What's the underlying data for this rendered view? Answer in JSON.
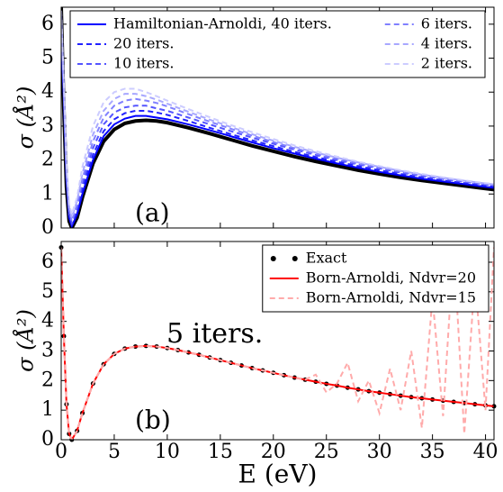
{
  "chart_data": [
    {
      "type": "line",
      "ylabel": "σ (Å²)",
      "annotations": [
        "(a)"
      ],
      "x": [
        0,
        0.25,
        0.5,
        0.75,
        1,
        1.5,
        2,
        3,
        4,
        5,
        6,
        7,
        8,
        9,
        10,
        12,
        14,
        16,
        18,
        20,
        22,
        24,
        26,
        28,
        30,
        32,
        34,
        36,
        38,
        40,
        40.8
      ],
      "series": [
        {
          "color": "#000000",
          "linestyle": "solid",
          "linewidth": 4,
          "values": [
            6.5,
            3.5,
            1.2,
            0.2,
            0.0,
            0.3,
            0.9,
            1.9,
            2.55,
            2.9,
            3.08,
            3.15,
            3.17,
            3.15,
            3.1,
            2.95,
            2.78,
            2.6,
            2.42,
            2.26,
            2.1,
            1.96,
            1.83,
            1.7,
            1.59,
            1.49,
            1.4,
            1.32,
            1.24,
            1.16,
            1.13
          ]
        },
        {
          "name": "Hamiltonian-Arnoldi, 40 iters.",
          "color": "#0000ff",
          "linestyle": "solid",
          "linewidth": 2,
          "values": [
            5.7,
            3.8,
            1.4,
            0.3,
            0.05,
            0.4,
            1.0,
            2.0,
            2.7,
            3.05,
            3.22,
            3.3,
            3.3,
            3.25,
            3.2,
            3.05,
            2.88,
            2.7,
            2.52,
            2.35,
            2.19,
            2.04,
            1.9,
            1.77,
            1.65,
            1.55,
            1.45,
            1.37,
            1.29,
            1.21,
            1.18
          ]
        },
        {
          "name": "20 iters.",
          "color": "#2222ff",
          "linestyle": "dashed",
          "linewidth": 2,
          "values": [
            6.0,
            3.9,
            1.5,
            0.35,
            0.1,
            0.5,
            1.15,
            2.15,
            2.85,
            3.2,
            3.38,
            3.45,
            3.45,
            3.4,
            3.33,
            3.15,
            2.95,
            2.76,
            2.58,
            2.41,
            2.24,
            2.09,
            1.95,
            1.82,
            1.7,
            1.59,
            1.49,
            1.4,
            1.32,
            1.25,
            1.22
          ]
        },
        {
          "name": "10 iters.",
          "color": "#5555ff",
          "linestyle": "dashed",
          "linewidth": 2,
          "values": [
            6.1,
            4.0,
            1.6,
            0.4,
            0.15,
            0.6,
            1.3,
            2.35,
            3.05,
            3.4,
            3.55,
            3.6,
            3.6,
            3.52,
            3.45,
            3.25,
            3.05,
            2.85,
            2.66,
            2.48,
            2.31,
            2.15,
            2.0,
            1.87,
            1.75,
            1.63,
            1.53,
            1.44,
            1.36,
            1.28,
            1.25
          ]
        },
        {
          "name": "6 iters.",
          "color": "#8080ff",
          "linestyle": "dashed",
          "linewidth": 2,
          "values": [
            6.2,
            4.1,
            1.7,
            0.5,
            0.2,
            0.7,
            1.45,
            2.55,
            3.25,
            3.6,
            3.75,
            3.8,
            3.75,
            3.68,
            3.58,
            3.35,
            3.13,
            2.92,
            2.72,
            2.53,
            2.35,
            2.19,
            2.04,
            1.9,
            1.78,
            1.66,
            1.56,
            1.46,
            1.38,
            1.3,
            1.27
          ]
        },
        {
          "name": "4 iters.",
          "color": "#a8a8ff",
          "linestyle": "dashed",
          "linewidth": 2,
          "values": [
            6.3,
            4.2,
            1.8,
            0.6,
            0.3,
            0.8,
            1.6,
            2.75,
            3.45,
            3.8,
            3.95,
            3.95,
            3.88,
            3.78,
            3.66,
            3.42,
            3.19,
            2.97,
            2.76,
            2.57,
            2.39,
            2.22,
            2.07,
            1.93,
            1.8,
            1.68,
            1.57,
            1.48,
            1.39,
            1.31,
            1.28
          ]
        },
        {
          "name": "2 iters.",
          "color": "#ccccff",
          "linestyle": "dashed",
          "linewidth": 2,
          "values": [
            6.4,
            4.3,
            1.9,
            0.7,
            0.4,
            0.9,
            1.8,
            3.0,
            3.7,
            4.0,
            4.1,
            4.1,
            4.0,
            3.88,
            3.75,
            3.5,
            3.26,
            3.03,
            2.82,
            2.62,
            2.43,
            2.26,
            2.1,
            1.95,
            1.82,
            1.7,
            1.59,
            1.49,
            1.4,
            1.32,
            1.29
          ]
        }
      ],
      "xlim": [
        0,
        40.8
      ],
      "ylim": [
        0,
        6.5
      ],
      "xticks": [
        0,
        5,
        10,
        15,
        20,
        25,
        30,
        35,
        40
      ],
      "yticks": [
        0,
        1,
        2,
        3,
        4,
        5,
        6
      ],
      "show_xtick_labels": false,
      "legend": "upper center",
      "legend_columns": 2
    },
    {
      "type": "line",
      "xlabel": "E (eV)",
      "ylabel": "σ (Å²)",
      "annotations": [
        "5 iters.",
        "(b)"
      ],
      "x": [
        0,
        0.25,
        0.5,
        0.75,
        1,
        1.5,
        2,
        3,
        4,
        5,
        6,
        7,
        8,
        9,
        10,
        11,
        12,
        13,
        14,
        15,
        16,
        17,
        18,
        19,
        20,
        21,
        22,
        23,
        24,
        25,
        26,
        27,
        28,
        29,
        30,
        31,
        32,
        33,
        34,
        35,
        36,
        37,
        38,
        39,
        40,
        40.8
      ],
      "series": [
        {
          "name": "Exact",
          "color": "#000000",
          "linestyle": "none",
          "marker": "o",
          "linewidth": 0,
          "values": [
            6.5,
            3.5,
            1.2,
            0.2,
            0.0,
            0.3,
            0.9,
            1.9,
            2.55,
            2.9,
            3.08,
            3.15,
            3.17,
            3.15,
            3.1,
            3.03,
            2.95,
            2.87,
            2.78,
            2.69,
            2.6,
            2.51,
            2.42,
            2.34,
            2.26,
            2.18,
            2.1,
            2.03,
            1.96,
            1.89,
            1.83,
            1.76,
            1.7,
            1.64,
            1.59,
            1.54,
            1.49,
            1.44,
            1.4,
            1.36,
            1.32,
            1.28,
            1.24,
            1.2,
            1.16,
            1.13
          ]
        },
        {
          "name": "Born-Arnoldi, Ndvr=20",
          "color": "#ff0000",
          "linestyle": "solid",
          "linewidth": 2,
          "values": [
            6.5,
            3.5,
            1.2,
            0.2,
            0.0,
            0.3,
            0.9,
            1.9,
            2.55,
            2.9,
            3.08,
            3.15,
            3.17,
            3.15,
            3.1,
            3.03,
            2.95,
            2.87,
            2.78,
            2.69,
            2.6,
            2.51,
            2.42,
            2.34,
            2.26,
            2.18,
            2.1,
            2.03,
            1.96,
            1.89,
            1.83,
            1.76,
            1.7,
            1.64,
            1.59,
            1.54,
            1.49,
            1.44,
            1.4,
            1.36,
            1.32,
            1.28,
            1.24,
            1.2,
            1.16,
            1.13
          ]
        },
        {
          "name": "Born-Arnoldi, Ndvr=15",
          "color": "#ffaaaa",
          "linestyle": "dashed",
          "linewidth": 2,
          "values": [
            6.5,
            3.5,
            1.2,
            0.2,
            0.0,
            0.3,
            0.9,
            1.9,
            2.55,
            2.9,
            3.08,
            3.15,
            3.17,
            3.15,
            3.1,
            3.03,
            2.95,
            2.87,
            2.78,
            2.69,
            2.6,
            2.51,
            2.42,
            2.34,
            2.26,
            2.18,
            2.1,
            2.03,
            2.2,
            1.6,
            1.9,
            2.6,
            1.3,
            2.0,
            0.9,
            2.4,
            1.0,
            3.0,
            0.4,
            4.8,
            0.8,
            6.5,
            0.2,
            5.5,
            1.0,
            6.5
          ]
        }
      ],
      "xlim": [
        0,
        40.8
      ],
      "ylim": [
        0,
        6.7
      ],
      "xticks": [
        0,
        5,
        10,
        15,
        20,
        25,
        30,
        35,
        40
      ],
      "yticks": [
        0,
        1,
        2,
        3,
        4,
        5,
        6
      ],
      "show_xtick_labels": true,
      "legend": "upper right",
      "legend_columns": 1
    }
  ]
}
